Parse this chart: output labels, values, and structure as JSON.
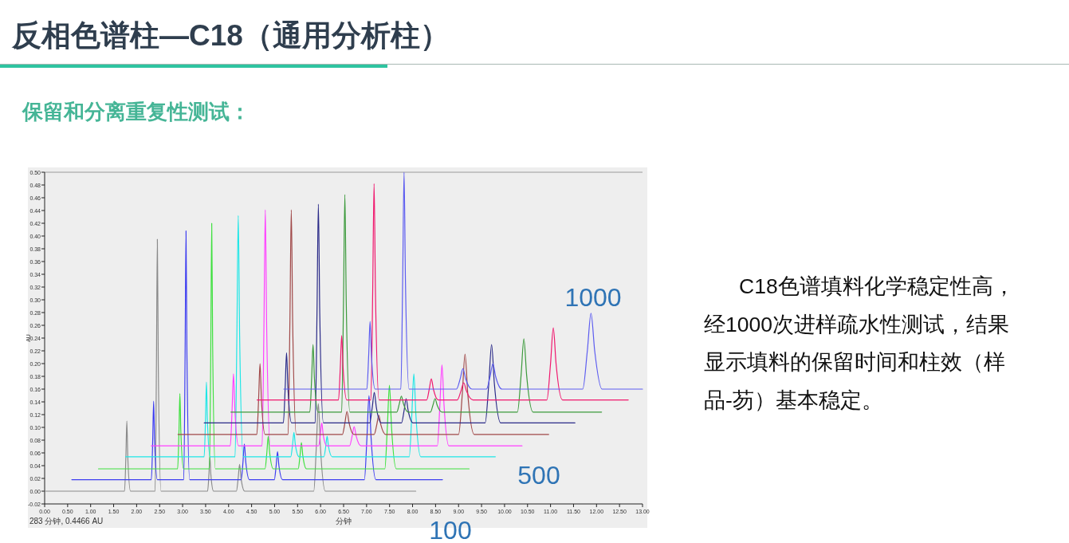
{
  "chart_data": {
    "type": "line",
    "title": "反相色谱柱—C18（通用分析柱）",
    "subtitle": "保留和分离重复性测试：",
    "xlabel": "分钟",
    "ylabel": "AU",
    "annotations": [
      "100",
      "500",
      "1000",
      "C18色谱填料化学稳定性高，经1000次进样疏水性测试，结果显示填料的保留时间和柱效（样品-芴）基本稳定。",
      "283 分钟, 0.4466 AU"
    ],
    "xlim": [
      0,
      13
    ],
    "xticks": [
      {
        "value": 0,
        "label": "0.00"
      },
      {
        "value": 0.5,
        "label": "0.50"
      },
      {
        "value": 1,
        "label": "1.00"
      },
      {
        "value": 1.5,
        "label": "1.50"
      },
      {
        "value": 2,
        "label": "2.00"
      },
      {
        "value": 2.5,
        "label": "2.50"
      },
      {
        "value": 3,
        "label": "3.00"
      },
      {
        "value": 3.5,
        "label": "3.50"
      },
      {
        "value": 4,
        "label": "4.00"
      },
      {
        "value": 4.5,
        "label": "4.50"
      },
      {
        "value": 5,
        "label": "5.00"
      },
      {
        "value": 5.5,
        "label": "5.50"
      },
      {
        "value": 6,
        "label": "6.00"
      },
      {
        "value": 6.5,
        "label": "6.50"
      },
      {
        "value": 7,
        "label": "7.00"
      },
      {
        "value": 7.5,
        "label": "7.50"
      },
      {
        "value": 8,
        "label": "8.00"
      },
      {
        "value": 8.5,
        "label": "8.50"
      },
      {
        "value": 9,
        "label": "9.00"
      },
      {
        "value": 9.5,
        "label": "9.50"
      },
      {
        "value": 10,
        "label": "10.00"
      },
      {
        "value": 10.5,
        "label": "10.50"
      },
      {
        "value": 11,
        "label": "11.00"
      },
      {
        "value": 11.5,
        "label": "11.50"
      },
      {
        "value": 12,
        "label": "12.00"
      },
      {
        "value": 12.5,
        "label": "12.50"
      },
      {
        "value": 13,
        "label": "13.00"
      }
    ],
    "ylim": [
      -0.02,
      0.5
    ],
    "yticks": [
      {
        "value": -0.02,
        "label": "-0.02"
      },
      {
        "value": 0,
        "label": "0.00"
      },
      {
        "value": 0.02,
        "label": "0.02"
      },
      {
        "value": 0.04,
        "label": "0.04"
      },
      {
        "value": 0.06,
        "label": "0.06"
      },
      {
        "value": 0.08,
        "label": "0.08"
      },
      {
        "value": 0.1,
        "label": "0.10"
      },
      {
        "value": 0.12,
        "label": "0.12"
      },
      {
        "value": 0.14,
        "label": "0.14"
      },
      {
        "value": 0.16,
        "label": "0.16"
      },
      {
        "value": 0.18,
        "label": "0.18"
      },
      {
        "value": 0.2,
        "label": "0.20"
      },
      {
        "value": 0.22,
        "label": "0.22"
      },
      {
        "value": 0.24,
        "label": "0.24"
      },
      {
        "value": 0.26,
        "label": "0.26"
      },
      {
        "value": 0.28,
        "label": "0.28"
      },
      {
        "value": 0.3,
        "label": "0.30"
      },
      {
        "value": 0.32,
        "label": "0.32"
      },
      {
        "value": 0.34,
        "label": "0.34"
      },
      {
        "value": 0.36,
        "label": "0.36"
      },
      {
        "value": 0.38,
        "label": "0.38"
      },
      {
        "value": 0.4,
        "label": "0.40"
      },
      {
        "value": 0.42,
        "label": "0.42"
      },
      {
        "value": 0.44,
        "label": "0.44"
      },
      {
        "value": 0.46,
        "label": "0.46"
      },
      {
        "value": 0.48,
        "label": "0.48"
      },
      {
        "value": 0.5,
        "label": "0.50"
      }
    ],
    "series": [
      {
        "color": "#8a8a8a",
        "x": [
          0,
          1.737,
          1.767,
          1.787,
          1.807,
          1.867,
          2.401,
          2.431,
          2.451,
          2.471,
          2.531,
          3.543,
          3.573,
          3.593,
          3.613,
          3.673,
          4.169,
          4.209,
          4.239,
          4.269,
          4.349,
          5.852,
          5.907,
          5.952,
          5.997,
          6.102,
          8.07
        ],
        "values": [
          0,
          0,
          0.055,
          0.11,
          0.055,
          0,
          0,
          0.198,
          0.395,
          0.198,
          0,
          0,
          0.027,
          0.054,
          0.027,
          0,
          0,
          0.021,
          0.042,
          0.021,
          0,
          0,
          0.069,
          0.137,
          0.069,
          0,
          0
        ]
      },
      {
        "color": "#3c3cf0",
        "x": [
          0.59,
          2.32,
          2.35,
          2.37,
          2.39,
          2.45,
          3.024,
          3.054,
          3.074,
          3.094,
          3.154,
          4.273,
          4.313,
          4.343,
          4.373,
          4.453,
          4.994,
          5.034,
          5.064,
          5.094,
          5.174,
          6.953,
          7.008,
          7.053,
          7.098,
          7.203,
          8.65
        ],
        "values": [
          0.018,
          0.018,
          0.08,
          0.141,
          0.08,
          0.018,
          0.018,
          0.213,
          0.408,
          0.213,
          0.018,
          0.018,
          0.046,
          0.074,
          0.046,
          0.018,
          0.018,
          0.04,
          0.062,
          0.04,
          0.018,
          0.018,
          0.084,
          0.15,
          0.084,
          0.018,
          0.018
        ]
      },
      {
        "color": "#3ee03e",
        "x": [
          1.17,
          2.891,
          2.921,
          2.941,
          2.961,
          3.021,
          3.583,
          3.613,
          3.633,
          3.653,
          3.713,
          4.792,
          4.832,
          4.862,
          4.892,
          4.972,
          5.513,
          5.553,
          5.583,
          5.613,
          5.693,
          7.397,
          7.452,
          7.497,
          7.542,
          7.647,
          9.23
        ],
        "values": [
          0.035,
          0.035,
          0.094,
          0.153,
          0.094,
          0.035,
          0.035,
          0.228,
          0.42,
          0.228,
          0.035,
          0.035,
          0.061,
          0.086,
          0.061,
          0.035,
          0.035,
          0.056,
          0.076,
          0.056,
          0.035,
          0.035,
          0.101,
          0.166,
          0.101,
          0.035,
          0.035
        ]
      },
      {
        "color": "#1ee6e6",
        "x": [
          1.76,
          3.468,
          3.498,
          3.518,
          3.538,
          3.598,
          4.14,
          4.18,
          4.21,
          4.24,
          4.32,
          5.351,
          5.391,
          5.421,
          5.451,
          5.531,
          6.072,
          6.112,
          6.142,
          6.172,
          6.252,
          7.928,
          7.983,
          8.028,
          8.073,
          8.178,
          9.8
        ],
        "values": [
          0.054,
          0.054,
          0.113,
          0.171,
          0.113,
          0.054,
          0.054,
          0.243,
          0.432,
          0.243,
          0.054,
          0.054,
          0.073,
          0.092,
          0.073,
          0.054,
          0.054,
          0.07,
          0.086,
          0.07,
          0.054,
          0.054,
          0.119,
          0.184,
          0.119,
          0.054,
          0.054
        ]
      },
      {
        "color": "#ff40ff",
        "x": [
          2.32,
          4.036,
          4.076,
          4.106,
          4.136,
          4.216,
          4.728,
          4.768,
          4.798,
          4.828,
          4.908,
          5.956,
          5.996,
          6.026,
          6.056,
          6.136,
          6.63,
          6.685,
          6.73,
          6.775,
          6.88,
          8.539,
          8.594,
          8.639,
          8.684,
          8.789,
          10.38
        ],
        "values": [
          0.071,
          0.071,
          0.128,
          0.184,
          0.128,
          0.071,
          0.071,
          0.256,
          0.441,
          0.256,
          0.071,
          0.071,
          0.089,
          0.107,
          0.089,
          0.071,
          0.071,
          0.086,
          0.101,
          0.086,
          0.071,
          0.071,
          0.135,
          0.198,
          0.135,
          0.071,
          0.071
        ]
      },
      {
        "color": "#a04848",
        "x": [
          2.9,
          4.613,
          4.653,
          4.683,
          4.713,
          4.793,
          5.293,
          5.333,
          5.363,
          5.393,
          5.473,
          6.474,
          6.529,
          6.574,
          6.619,
          6.724,
          7.166,
          7.221,
          7.266,
          7.311,
          7.416,
          9.001,
          9.081,
          9.141,
          9.201,
          9.341,
          10.96
        ],
        "values": [
          0.089,
          0.089,
          0.145,
          0.2,
          0.145,
          0.089,
          0.089,
          0.265,
          0.441,
          0.265,
          0.089,
          0.089,
          0.107,
          0.125,
          0.107,
          0.089,
          0.089,
          0.104,
          0.119,
          0.104,
          0.089,
          0.089,
          0.152,
          0.215,
          0.152,
          0.089,
          0.089
        ]
      },
      {
        "color": "#2a2a88",
        "x": [
          3.47,
          5.19,
          5.23,
          5.26,
          5.29,
          5.37,
          5.882,
          5.922,
          5.952,
          5.982,
          6.062,
          7.068,
          7.123,
          7.168,
          7.213,
          7.318,
          7.76,
          7.815,
          7.86,
          7.905,
          8.01,
          9.578,
          9.658,
          9.718,
          9.778,
          9.918,
          11.53
        ],
        "values": [
          0.107,
          0.107,
          0.162,
          0.217,
          0.162,
          0.107,
          0.107,
          0.279,
          0.45,
          0.279,
          0.107,
          0.107,
          0.131,
          0.155,
          0.131,
          0.107,
          0.107,
          0.126,
          0.145,
          0.126,
          0.107,
          0.107,
          0.169,
          0.23,
          0.169,
          0.107,
          0.107
        ]
      },
      {
        "color": "#3c9a3c",
        "x": [
          4.05,
          5.766,
          5.806,
          5.836,
          5.866,
          5.946,
          6.458,
          6.498,
          6.528,
          6.558,
          6.638,
          7.657,
          7.712,
          7.757,
          7.802,
          7.907,
          8.389,
          8.444,
          8.489,
          8.534,
          8.639,
          10.28,
          10.36,
          10.42,
          10.48,
          10.62,
          12.11
        ],
        "values": [
          0.124,
          0.124,
          0.177,
          0.23,
          0.177,
          0.124,
          0.124,
          0.295,
          0.465,
          0.295,
          0.124,
          0.124,
          0.137,
          0.149,
          0.137,
          0.124,
          0.124,
          0.135,
          0.145,
          0.135,
          0.124,
          0.124,
          0.182,
          0.239,
          0.182,
          0.124,
          0.124
        ]
      },
      {
        "color": "#f0186e",
        "x": [
          4.62,
          6.389,
          6.429,
          6.459,
          6.489,
          6.569,
          7.093,
          7.133,
          7.163,
          7.193,
          7.273,
          8.308,
          8.363,
          8.408,
          8.453,
          8.558,
          8.972,
          9.052,
          9.112,
          9.172,
          9.312,
          10.92,
          11.0,
          11.06,
          11.12,
          11.26,
          12.69
        ],
        "values": [
          0.143,
          0.143,
          0.194,
          0.244,
          0.194,
          0.143,
          0.143,
          0.312,
          0.482,
          0.312,
          0.143,
          0.143,
          0.16,
          0.176,
          0.16,
          0.143,
          0.143,
          0.157,
          0.17,
          0.157,
          0.143,
          0.143,
          0.2,
          0.256,
          0.2,
          0.143,
          0.143
        ]
      },
      {
        "color": "#5c5cf0",
        "x": [
          5.2,
          7.006,
          7.046,
          7.076,
          7.106,
          7.186,
          7.745,
          7.785,
          7.815,
          7.845,
          7.925,
          8.955,
          9.035,
          9.095,
          9.155,
          9.295,
          9.606,
          9.686,
          9.746,
          9.806,
          9.946,
          11.7,
          11.8,
          11.88,
          11.96,
          12.12,
          13
        ],
        "values": [
          0.16,
          0.16,
          0.213,
          0.266,
          0.213,
          0.16,
          0.16,
          0.33,
          0.5,
          0.33,
          0.16,
          0.16,
          0.176,
          0.192,
          0.176,
          0.16,
          0.16,
          0.18,
          0.2,
          0.18,
          0.16,
          0.16,
          0.22,
          0.279,
          0.22,
          0.16,
          0.16
        ]
      }
    ]
  }
}
